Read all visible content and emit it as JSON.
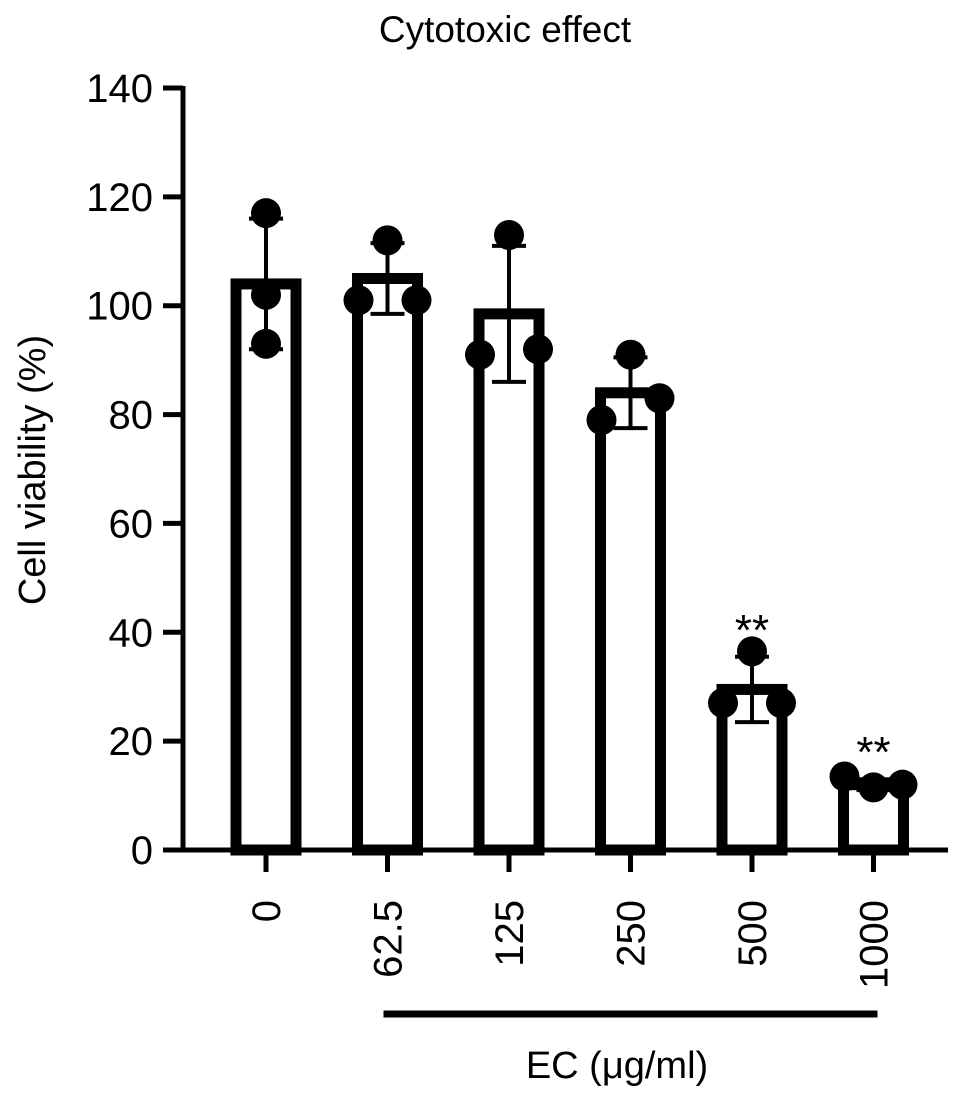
{
  "chart_data": {
    "type": "bar",
    "title": "Cytotoxic effect",
    "ylabel": "Cell viability (%)",
    "xlabel": "EC (μg/ml)",
    "ylim": [
      0,
      140
    ],
    "yticks": [
      0,
      20,
      40,
      60,
      80,
      100,
      120,
      140
    ],
    "grid": false,
    "categories": [
      "0",
      "62.5",
      "125",
      "250",
      "500",
      "1000"
    ],
    "values": [
      104,
      105,
      98.5,
      84,
      29.5,
      12
    ],
    "error": [
      12,
      6.5,
      12.5,
      6.5,
      6,
      1
    ],
    "points": [
      [
        117,
        102,
        93
      ],
      [
        112,
        101,
        101
      ],
      [
        113,
        91,
        92
      ],
      [
        91,
        79,
        83
      ],
      [
        36.5,
        27,
        27
      ],
      [
        11.5,
        13.5,
        12
      ]
    ],
    "annotations": [
      "",
      "",
      "",
      "",
      "**",
      "**"
    ],
    "bracket_under": [
      "62.5",
      "1000"
    ],
    "colors": {
      "bar_fill": "#ffffff",
      "stroke": "#000000",
      "point": "#000000"
    }
  }
}
